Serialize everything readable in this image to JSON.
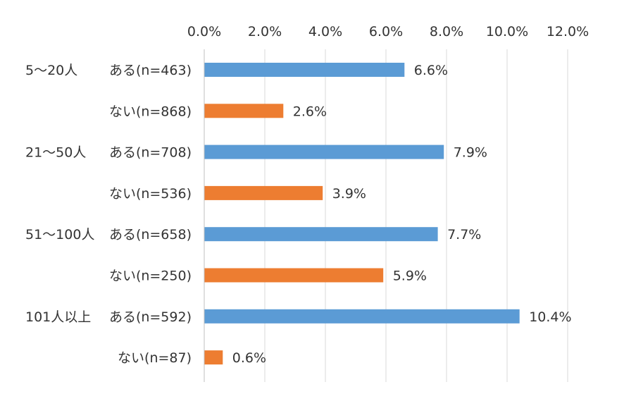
{
  "chart_data": {
    "type": "bar",
    "orientation": "horizontal",
    "x_axis_position": "top",
    "xlim": [
      0,
      12
    ],
    "x_ticks": [
      0,
      2,
      4,
      6,
      8,
      10,
      12
    ],
    "x_tick_labels": [
      "0.0%",
      "2.0%",
      "4.0%",
      "6.0%",
      "8.0%",
      "10.0%",
      "12.0%"
    ],
    "grid": true,
    "legend": "none",
    "colors": {
      "ある": "#5B9BD5",
      "ない": "#ED7D31"
    },
    "groups": [
      {
        "label": "5～20人",
        "bars": [
          {
            "category": "ある(n=463)",
            "value": 6.6,
            "value_label": "6.6%",
            "color": "#5B9BD5"
          },
          {
            "category": "ない(n=868)",
            "value": 2.6,
            "value_label": "2.6%",
            "color": "#ED7D31"
          }
        ]
      },
      {
        "label": "21～50人",
        "bars": [
          {
            "category": "ある(n=708)",
            "value": 7.9,
            "value_label": "7.9%",
            "color": "#5B9BD5"
          },
          {
            "category": "ない(n=536)",
            "value": 3.9,
            "value_label": "3.9%",
            "color": "#ED7D31"
          }
        ]
      },
      {
        "label": "51～100人",
        "bars": [
          {
            "category": "ある(n=658)",
            "value": 7.7,
            "value_label": "7.7%",
            "color": "#5B9BD5"
          },
          {
            "category": "ない(n=250)",
            "value": 5.9,
            "value_label": "5.9%",
            "color": "#ED7D31"
          }
        ]
      },
      {
        "label": "101人以上",
        "bars": [
          {
            "category": "ある(n=592)",
            "value": 10.4,
            "value_label": "10.4%",
            "color": "#5B9BD5"
          },
          {
            "category": "ない(n=87)",
            "value": 0.6,
            "value_label": "0.6%",
            "color": "#ED7D31"
          }
        ]
      }
    ]
  }
}
